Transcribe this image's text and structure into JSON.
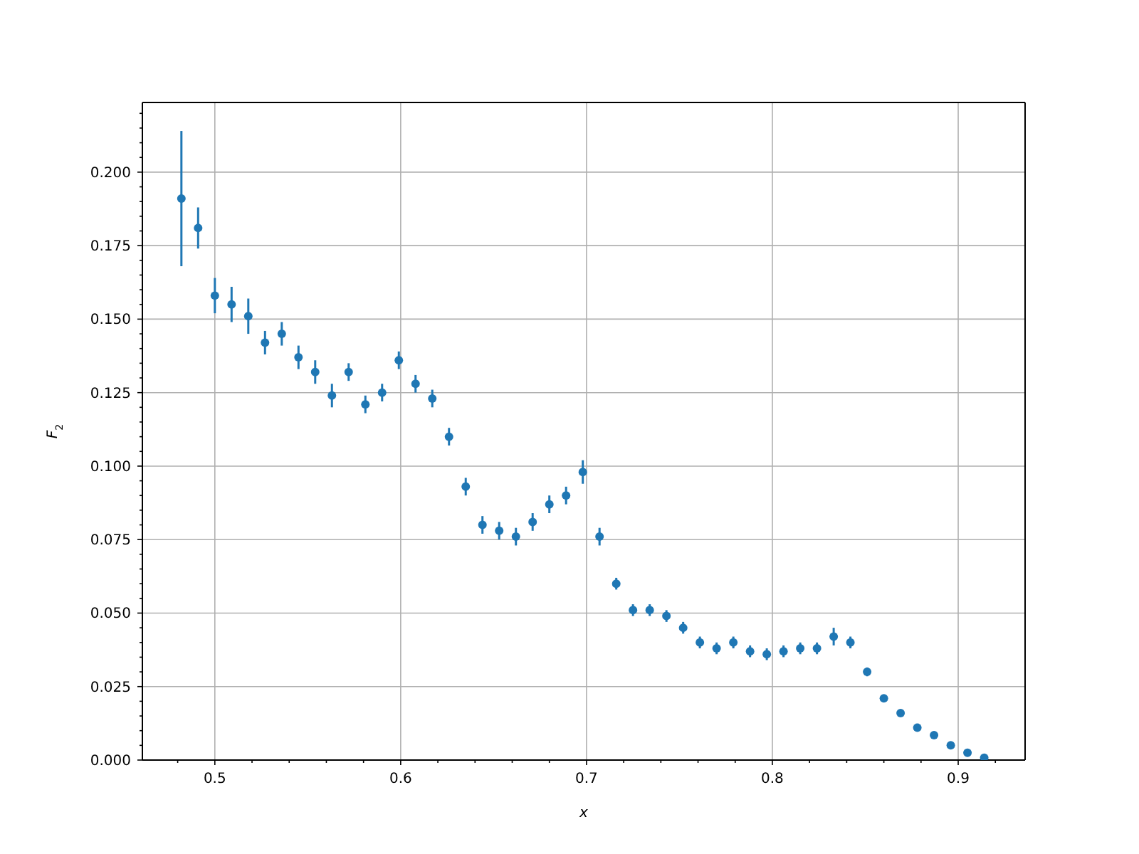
{
  "chart_data": {
    "type": "scatter",
    "xlabel": "x",
    "ylabel": "F$_{2}$",
    "x": [
      0.482,
      0.491,
      0.5,
      0.509,
      0.518,
      0.527,
      0.536,
      0.545,
      0.554,
      0.563,
      0.572,
      0.581,
      0.59,
      0.599,
      0.608,
      0.617,
      0.626,
      0.635,
      0.644,
      0.653,
      0.662,
      0.671,
      0.68,
      0.689,
      0.698,
      0.707,
      0.716,
      0.725,
      0.734,
      0.743,
      0.752,
      0.761,
      0.77,
      0.779,
      0.788,
      0.797,
      0.806,
      0.815,
      0.824,
      0.833,
      0.842,
      0.851,
      0.86,
      0.869,
      0.878,
      0.887,
      0.896,
      0.905,
      0.914
    ],
    "values": [
      0.191,
      0.181,
      0.158,
      0.155,
      0.151,
      0.142,
      0.145,
      0.137,
      0.132,
      0.124,
      0.132,
      0.121,
      0.125,
      0.136,
      0.128,
      0.123,
      0.11,
      0.093,
      0.08,
      0.078,
      0.076,
      0.081,
      0.087,
      0.09,
      0.098,
      0.076,
      0.06,
      0.051,
      0.051,
      0.049,
      0.045,
      0.04,
      0.038,
      0.04,
      0.037,
      0.036,
      0.037,
      0.038,
      0.038,
      0.042,
      0.04,
      0.03,
      0.021,
      0.016,
      0.011,
      0.0085,
      0.005,
      0.0025,
      0.0008
    ],
    "errors": [
      0.023,
      0.007,
      0.006,
      0.006,
      0.006,
      0.004,
      0.004,
      0.004,
      0.004,
      0.004,
      0.003,
      0.003,
      0.003,
      0.003,
      0.003,
      0.003,
      0.003,
      0.003,
      0.003,
      0.003,
      0.003,
      0.003,
      0.003,
      0.003,
      0.004,
      0.003,
      0.002,
      0.002,
      0.002,
      0.002,
      0.002,
      0.002,
      0.002,
      0.002,
      0.002,
      0.002,
      0.002,
      0.002,
      0.002,
      0.003,
      0.002,
      0.0015,
      null,
      null,
      null,
      null,
      null,
      null,
      null
    ],
    "color": "#1f77b4",
    "marker": "circle",
    "grid": true,
    "xlim": [
      0.461,
      0.936
    ],
    "xticks": [
      {
        "value": 0.48,
        "label": null
      },
      0.5,
      {
        "value": 0.52,
        "label": null
      },
      {
        "value": 0.54,
        "label": null
      },
      {
        "value": 0.56,
        "label": null
      },
      {
        "value": 0.58,
        "label": null
      },
      0.6,
      {
        "value": 0.62,
        "label": null
      },
      {
        "value": 0.64,
        "label": null
      },
      {
        "value": 0.66,
        "label": null
      },
      {
        "value": 0.68,
        "label": null
      },
      0.7,
      {
        "value": 0.72,
        "label": null
      },
      {
        "value": 0.74,
        "label": null
      },
      {
        "value": 0.76,
        "label": null
      },
      {
        "value": 0.78,
        "label": null
      },
      0.8,
      {
        "value": 0.82,
        "label": null
      },
      {
        "value": 0.84,
        "label": null
      },
      {
        "value": 0.86,
        "label": null
      },
      {
        "value": 0.88,
        "label": null
      },
      0.9,
      {
        "value": 0.92,
        "label": null
      }
    ],
    "ylim": [
      0,
      0.2237
    ],
    "yticks": [
      {
        "value": 0,
        "label": "0.000"
      },
      {
        "value": 0.025,
        "label": "0.025"
      },
      {
        "value": 0.05,
        "label": "0.050"
      },
      {
        "value": 0.075,
        "label": "0.075"
      },
      {
        "value": 0.1,
        "label": "0.100"
      },
      {
        "value": 0.125,
        "label": "0.125"
      },
      {
        "value": 0.15,
        "label": "0.150"
      },
      {
        "value": 0.175,
        "label": "0.175"
      },
      {
        "value": 0.2,
        "label": "0.200"
      },
      {
        "value": 0.005,
        "label": null
      },
      {
        "value": 0.01,
        "label": null
      },
      {
        "value": 0.015,
        "label": null
      },
      {
        "value": 0.02,
        "label": null
      },
      {
        "value": 0.03,
        "label": null
      },
      {
        "value": 0.035,
        "label": null
      },
      {
        "value": 0.04,
        "label": null
      },
      {
        "value": 0.045,
        "label": null
      },
      {
        "value": 0.055,
        "label": null
      },
      {
        "value": 0.06,
        "label": null
      },
      {
        "value": 0.065,
        "label": null
      },
      {
        "value": 0.07,
        "label": null
      },
      {
        "value": 0.08,
        "label": null
      },
      {
        "value": 0.085,
        "label": null
      },
      {
        "value": 0.09,
        "label": null
      },
      {
        "value": 0.095,
        "label": null
      },
      {
        "value": 0.105,
        "label": null
      },
      {
        "value": 0.11,
        "label": null
      },
      {
        "value": 0.115,
        "label": null
      },
      {
        "value": 0.12,
        "label": null
      },
      {
        "value": 0.13,
        "label": null
      },
      {
        "value": 0.135,
        "label": null
      },
      {
        "value": 0.14,
        "label": null
      },
      {
        "value": 0.145,
        "label": null
      },
      {
        "value": 0.155,
        "label": null
      },
      {
        "value": 0.16,
        "label": null
      },
      {
        "value": 0.165,
        "label": null
      },
      {
        "value": 0.17,
        "label": null
      },
      {
        "value": 0.18,
        "label": null
      },
      {
        "value": 0.185,
        "label": null
      },
      {
        "value": 0.19,
        "label": null
      },
      {
        "value": 0.195,
        "label": null
      },
      {
        "value": 0.205,
        "label": null
      },
      {
        "value": 0.21,
        "label": null
      },
      {
        "value": 0.215,
        "label": null
      },
      {
        "value": 0.22,
        "label": null
      }
    ]
  }
}
